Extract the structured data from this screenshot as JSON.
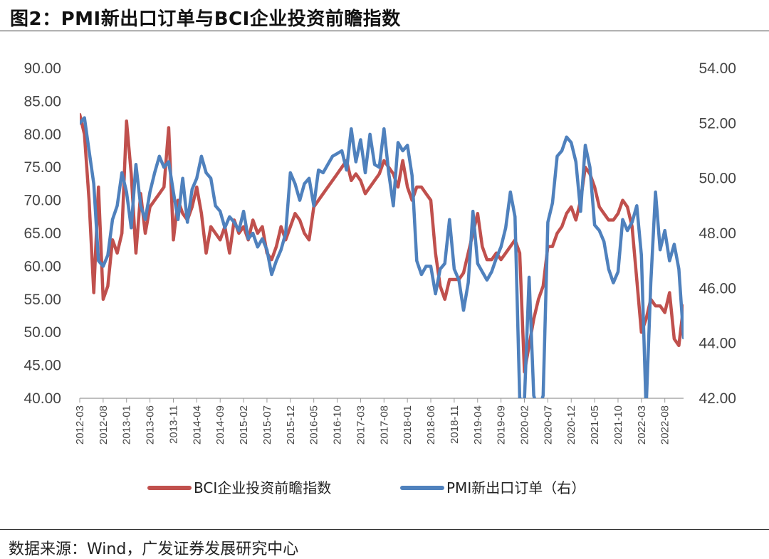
{
  "header": {
    "title": "图2：PMI新出口订单与BCI企业投资前瞻指数"
  },
  "footer": {
    "source": "数据来源：Wind，广发证券发展研究中心"
  },
  "colors": {
    "bci": "#c0504d",
    "pmi": "#4f81bd"
  },
  "chart_data": {
    "type": "line",
    "title": "PMI新出口订单与BCI企业投资前瞻指数",
    "left_axis": {
      "ylim": [
        40,
        90
      ],
      "ticks": [
        "40.00",
        "45.00",
        "50.00",
        "55.00",
        "60.00",
        "65.00",
        "70.00",
        "75.00",
        "80.00",
        "85.00",
        "90.00"
      ]
    },
    "right_axis": {
      "ylim": [
        42,
        54
      ],
      "ticks": [
        "42.00",
        "44.00",
        "46.00",
        "48.00",
        "50.00",
        "52.00",
        "54.00"
      ]
    },
    "x_tick_labels": [
      "2012-03",
      "2012-08",
      "2013-01",
      "2013-06",
      "2013-11",
      "2014-04",
      "2014-09",
      "2015-02",
      "2015-07",
      "2015-12",
      "2016-05",
      "2016-10",
      "2017-03",
      "2017-08",
      "2018-01",
      "2018-06",
      "2018-11",
      "2019-04",
      "2019-09",
      "2020-02",
      "2020-07",
      "2020-12",
      "2021-05",
      "2021-10",
      "2022-03",
      "2022-08"
    ],
    "x_range": [
      "2012-03",
      "2022-12"
    ],
    "legend": {
      "placement": "bottom"
    },
    "series": [
      {
        "name": "BCI企业投资前瞻指数",
        "axis": "left",
        "points": [
          [
            "2012-03",
            83
          ],
          [
            "2012-04",
            80
          ],
          [
            "2012-05",
            70
          ],
          [
            "2012-06",
            56
          ],
          [
            "2012-07",
            72
          ],
          [
            "2012-08",
            55
          ],
          [
            "2012-09",
            57
          ],
          [
            "2012-10",
            64
          ],
          [
            "2012-11",
            62
          ],
          [
            "2012-12",
            65
          ],
          [
            "2013-01",
            82
          ],
          [
            "2013-02",
            74
          ],
          [
            "2013-03",
            62
          ],
          [
            "2013-04",
            71
          ],
          [
            "2013-05",
            65
          ],
          [
            "2013-06",
            69
          ],
          [
            "2013-07",
            70
          ],
          [
            "2013-08",
            71
          ],
          [
            "2013-09",
            72
          ],
          [
            "2013-10",
            81
          ],
          [
            "2013-11",
            64
          ],
          [
            "2013-12",
            70
          ],
          [
            "2014-01",
            68
          ],
          [
            "2014-02",
            67
          ],
          [
            "2014-03",
            69
          ],
          [
            "2014-04",
            72
          ],
          [
            "2014-05",
            68
          ],
          [
            "2014-06",
            62
          ],
          [
            "2014-07",
            66
          ],
          [
            "2014-08",
            65
          ],
          [
            "2014-09",
            64
          ],
          [
            "2014-10",
            66
          ],
          [
            "2014-11",
            62
          ],
          [
            "2014-12",
            67
          ],
          [
            "2015-01",
            65
          ],
          [
            "2015-02",
            66
          ],
          [
            "2015-03",
            64
          ],
          [
            "2015-04",
            67
          ],
          [
            "2015-05",
            65
          ],
          [
            "2015-06",
            66
          ],
          [
            "2015-07",
            62
          ],
          [
            "2015-08",
            61
          ],
          [
            "2015-09",
            63
          ],
          [
            "2015-10",
            66
          ],
          [
            "2015-11",
            64
          ],
          [
            "2015-12",
            66
          ],
          [
            "2016-01",
            68
          ],
          [
            "2016-02",
            67
          ],
          [
            "2016-03",
            65
          ],
          [
            "2016-04",
            64
          ],
          [
            "2016-05",
            69
          ],
          [
            "2016-06",
            70
          ],
          [
            "2016-07",
            71
          ],
          [
            "2016-08",
            72
          ],
          [
            "2016-09",
            73
          ],
          [
            "2016-10",
            74
          ],
          [
            "2016-11",
            75
          ],
          [
            "2016-12",
            76
          ],
          [
            "2017-01",
            73
          ],
          [
            "2017-02",
            74
          ],
          [
            "2017-03",
            73
          ],
          [
            "2017-04",
            71
          ],
          [
            "2017-05",
            72
          ],
          [
            "2017-06",
            73
          ],
          [
            "2017-07",
            74
          ],
          [
            "2017-08",
            76
          ],
          [
            "2017-09",
            75
          ],
          [
            "2017-10",
            74
          ],
          [
            "2017-11",
            72
          ],
          [
            "2017-12",
            76
          ],
          [
            "2018-01",
            72
          ],
          [
            "2018-02",
            70
          ],
          [
            "2018-03",
            72
          ],
          [
            "2018-04",
            72
          ],
          [
            "2018-05",
            71
          ],
          [
            "2018-06",
            70
          ],
          [
            "2018-07",
            62
          ],
          [
            "2018-08",
            57
          ],
          [
            "2018-09",
            55
          ],
          [
            "2018-10",
            58
          ],
          [
            "2018-11",
            58
          ],
          [
            "2018-12",
            58
          ],
          [
            "2019-01",
            59
          ],
          [
            "2019-02",
            62
          ],
          [
            "2019-03",
            65
          ],
          [
            "2019-04",
            68
          ],
          [
            "2019-05",
            63
          ],
          [
            "2019-06",
            61
          ],
          [
            "2019-07",
            61
          ],
          [
            "2019-08",
            62
          ],
          [
            "2019-09",
            61
          ],
          [
            "2019-10",
            62
          ],
          [
            "2019-11",
            63
          ],
          [
            "2019-12",
            64
          ],
          [
            "2020-01",
            62
          ],
          [
            "2020-02",
            44
          ],
          [
            "2020-03",
            48
          ],
          [
            "2020-04",
            52
          ],
          [
            "2020-05",
            55
          ],
          [
            "2020-06",
            57
          ],
          [
            "2020-07",
            63
          ],
          [
            "2020-08",
            63
          ],
          [
            "2020-09",
            65
          ],
          [
            "2020-10",
            66
          ],
          [
            "2020-11",
            68
          ],
          [
            "2020-12",
            69
          ],
          [
            "2021-01",
            67
          ],
          [
            "2021-02",
            70
          ],
          [
            "2021-03",
            75
          ],
          [
            "2021-04",
            74
          ],
          [
            "2021-05",
            72
          ],
          [
            "2021-06",
            69
          ],
          [
            "2021-07",
            68
          ],
          [
            "2021-08",
            67
          ],
          [
            "2021-09",
            67
          ],
          [
            "2021-10",
            68
          ],
          [
            "2021-11",
            70
          ],
          [
            "2021-12",
            69
          ],
          [
            "2022-01",
            66
          ],
          [
            "2022-02",
            58
          ],
          [
            "2022-03",
            50
          ],
          [
            "2022-04",
            52
          ],
          [
            "2022-05",
            55
          ],
          [
            "2022-06",
            54
          ],
          [
            "2022-07",
            54
          ],
          [
            "2022-08",
            53
          ],
          [
            "2022-09",
            56
          ],
          [
            "2022-10",
            49
          ],
          [
            "2022-11",
            48
          ],
          [
            "2022-12",
            54
          ]
        ]
      },
      {
        "name": "PMI新出口订单（右）",
        "axis": "right",
        "points": [
          [
            "2012-03",
            52.0
          ],
          [
            "2012-04",
            52.2
          ],
          [
            "2012-05",
            51.0
          ],
          [
            "2012-06",
            49.8
          ],
          [
            "2012-07",
            47.0
          ],
          [
            "2012-08",
            46.8
          ],
          [
            "2012-09",
            47.2
          ],
          [
            "2012-10",
            48.5
          ],
          [
            "2012-11",
            49.0
          ],
          [
            "2012-12",
            50.2
          ],
          [
            "2013-01",
            49.5
          ],
          [
            "2013-02",
            48.2
          ],
          [
            "2013-03",
            50.5
          ],
          [
            "2013-04",
            49.0
          ],
          [
            "2013-05",
            48.5
          ],
          [
            "2013-06",
            49.5
          ],
          [
            "2013-07",
            50.2
          ],
          [
            "2013-08",
            50.8
          ],
          [
            "2013-09",
            50.4
          ],
          [
            "2013-10",
            50.6
          ],
          [
            "2013-11",
            49.5
          ],
          [
            "2013-12",
            48.5
          ],
          [
            "2014-01",
            50.0
          ],
          [
            "2014-02",
            48.4
          ],
          [
            "2014-03",
            49.6
          ],
          [
            "2014-04",
            50.0
          ],
          [
            "2014-05",
            50.8
          ],
          [
            "2014-06",
            50.2
          ],
          [
            "2014-07",
            50.0
          ],
          [
            "2014-08",
            49.0
          ],
          [
            "2014-09",
            48.8
          ],
          [
            "2014-10",
            48.2
          ],
          [
            "2014-11",
            48.6
          ],
          [
            "2014-12",
            48.4
          ],
          [
            "2015-01",
            48.1
          ],
          [
            "2015-02",
            48.8
          ],
          [
            "2015-03",
            47.8
          ],
          [
            "2015-04",
            48.0
          ],
          [
            "2015-05",
            47.5
          ],
          [
            "2015-06",
            47.8
          ],
          [
            "2015-07",
            47.4
          ],
          [
            "2015-08",
            46.5
          ],
          [
            "2015-09",
            47.0
          ],
          [
            "2015-10",
            47.4
          ],
          [
            "2015-11",
            48.0
          ],
          [
            "2015-12",
            50.2
          ],
          [
            "2016-01",
            49.8
          ],
          [
            "2016-02",
            49.2
          ],
          [
            "2016-03",
            49.8
          ],
          [
            "2016-04",
            50.0
          ],
          [
            "2016-05",
            49.0
          ],
          [
            "2016-06",
            50.3
          ],
          [
            "2016-07",
            50.2
          ],
          [
            "2016-08",
            50.5
          ],
          [
            "2016-09",
            50.8
          ],
          [
            "2016-10",
            50.9
          ],
          [
            "2016-11",
            51.0
          ],
          [
            "2016-12",
            50.3
          ],
          [
            "2017-01",
            51.8
          ],
          [
            "2017-02",
            50.6
          ],
          [
            "2017-03",
            51.4
          ],
          [
            "2017-04",
            50.2
          ],
          [
            "2017-05",
            51.6
          ],
          [
            "2017-06",
            50.5
          ],
          [
            "2017-07",
            50.4
          ],
          [
            "2017-08",
            51.8
          ],
          [
            "2017-09",
            50.2
          ],
          [
            "2017-10",
            49.0
          ],
          [
            "2017-11",
            51.3
          ],
          [
            "2017-12",
            51.0
          ],
          [
            "2018-01",
            51.2
          ],
          [
            "2018-02",
            50.1
          ],
          [
            "2018-03",
            47.0
          ],
          [
            "2018-04",
            46.5
          ],
          [
            "2018-05",
            46.8
          ],
          [
            "2018-06",
            46.8
          ],
          [
            "2018-07",
            45.8
          ],
          [
            "2018-08",
            46.7
          ],
          [
            "2018-09",
            46.9
          ],
          [
            "2018-10",
            48.5
          ],
          [
            "2018-11",
            46.7
          ],
          [
            "2018-12",
            46.3
          ],
          [
            "2019-01",
            45.2
          ],
          [
            "2019-02",
            46.2
          ],
          [
            "2019-03",
            48.8
          ],
          [
            "2019-04",
            46.9
          ],
          [
            "2019-05",
            46.6
          ],
          [
            "2019-06",
            46.3
          ],
          [
            "2019-07",
            46.6
          ],
          [
            "2019-08",
            47.1
          ],
          [
            "2019-09",
            47.5
          ],
          [
            "2019-10",
            48.2
          ],
          [
            "2019-11",
            49.5
          ],
          [
            "2019-12",
            48.6
          ],
          [
            "2020-01",
            42.0
          ],
          [
            "2020-02",
            41.9
          ],
          [
            "2020-03",
            46.4
          ],
          [
            "2020-04",
            42.1
          ],
          [
            "2020-05",
            41.5
          ],
          [
            "2020-06",
            42.1
          ],
          [
            "2020-07",
            48.4
          ],
          [
            "2020-08",
            49.1
          ],
          [
            "2020-09",
            50.8
          ],
          [
            "2020-10",
            51.0
          ],
          [
            "2020-11",
            51.5
          ],
          [
            "2020-12",
            51.3
          ],
          [
            "2021-01",
            50.6
          ],
          [
            "2021-02",
            48.8
          ],
          [
            "2021-03",
            51.2
          ],
          [
            "2021-04",
            50.4
          ],
          [
            "2021-05",
            48.3
          ],
          [
            "2021-06",
            48.1
          ],
          [
            "2021-07",
            47.7
          ],
          [
            "2021-08",
            46.7
          ],
          [
            "2021-09",
            46.2
          ],
          [
            "2021-10",
            46.6
          ],
          [
            "2021-11",
            48.5
          ],
          [
            "2021-12",
            48.1
          ],
          [
            "2022-01",
            48.4
          ],
          [
            "2022-02",
            49.0
          ],
          [
            "2022-03",
            47.2
          ],
          [
            "2022-04",
            41.6
          ],
          [
            "2022-05",
            46.2
          ],
          [
            "2022-06",
            49.5
          ],
          [
            "2022-07",
            47.4
          ],
          [
            "2022-08",
            48.1
          ],
          [
            "2022-09",
            47.0
          ],
          [
            "2022-10",
            47.6
          ],
          [
            "2022-11",
            46.7
          ],
          [
            "2022-12",
            44.2
          ]
        ]
      }
    ]
  }
}
